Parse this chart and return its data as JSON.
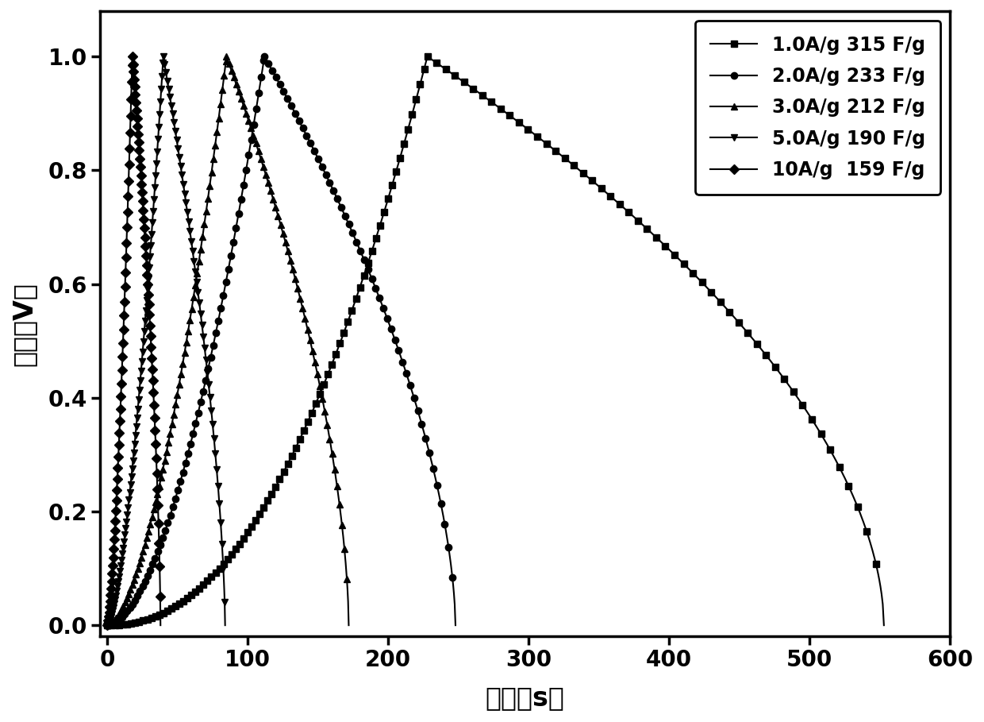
{
  "xlabel": "时间（s）",
  "ylabel": "电压（V）",
  "xlim": [
    -5,
    580
  ],
  "ylim": [
    -0.02,
    1.08
  ],
  "xticks": [
    0,
    100,
    200,
    300,
    400,
    500,
    600
  ],
  "yticks": [
    0.0,
    0.2,
    0.4,
    0.6,
    0.8,
    1.0
  ],
  "legend_labels": [
    "1.0A/g 315 F/g",
    "2.0A/g 233 F/g",
    "3.0A/g 212 F/g",
    "5.0A/g 190 F/g",
    "10A/g  159 F/g"
  ],
  "markers": [
    "s",
    "o",
    "^",
    "v",
    "D"
  ],
  "curves": [
    {
      "charge_end": 228,
      "discharge_end": 553,
      "ir_drop": 0.0,
      "charge_exp": 2.2,
      "discharge_exp": 0.55
    },
    {
      "charge_end": 112,
      "discharge_end": 248,
      "ir_drop": 0.0,
      "charge_exp": 1.8,
      "discharge_exp": 0.6
    },
    {
      "charge_end": 85,
      "discharge_end": 172,
      "ir_drop": 0.0,
      "charge_exp": 1.7,
      "discharge_exp": 0.6
    },
    {
      "charge_end": 40,
      "discharge_end": 84,
      "ir_drop": 0.0,
      "charge_exp": 1.6,
      "discharge_exp": 0.65
    },
    {
      "charge_end": 18,
      "discharge_end": 38,
      "ir_drop": 0.0,
      "charge_exp": 1.5,
      "discharge_exp": 0.65
    }
  ],
  "n_points": [
    800,
    500,
    400,
    280,
    200
  ],
  "marker_every_charge": [
    5,
    4,
    3,
    2,
    2
  ],
  "marker_every_discharge": [
    8,
    5,
    4,
    3,
    2
  ],
  "marker_size": 6,
  "line_width": 1.5,
  "tick_fontsize": 20,
  "label_fontsize": 24,
  "legend_fontsize": 17
}
